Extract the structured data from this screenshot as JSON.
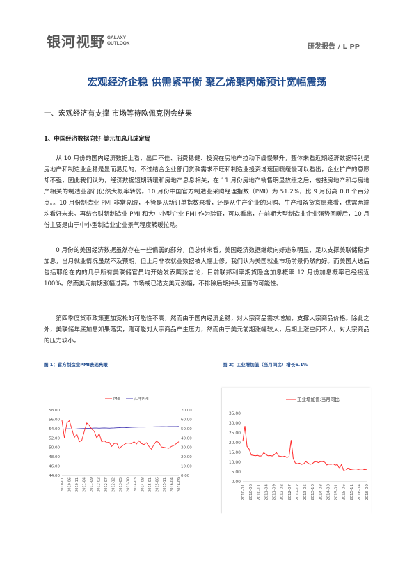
{
  "header": {
    "logo_cn": "银河视野",
    "logo_en_line1": "GALAXY",
    "logo_en_line2": "OUTLOOK",
    "report_tag": "研发报告 / L PP"
  },
  "title": "宏观经济企稳  供需紧平衡  聚乙烯聚丙烯预计宽幅震荡",
  "section_heading": "一、宏观经济有支撑    市场等待欧佩克例会结果",
  "sub_heading": "1、中国经济数据向好  美元加息几成定局",
  "paragraphs": [
    "从 10 月份的国内经济数据上看，出口不佳、消费稳健、投资在房地产拉动下缓慢攀升，整体来看近期经济数据特别是房地产和制造业企稳是显而易见的，不过结合企业部门贷款需求不旺和制造业投资增速回暖缓慢可以看出，企业扩产的意愿却不强，因此我们认为，经济数据短期转暖和房地产息息相关，在 11 月份房地产销售明显放缓之后，包括房地产和与房地产相关的制造业部门仍然大概率转弱。10 月份中国官方制造业采购经理指数（PMI）为 51.2%，比 9 月份高 0.8 个百分点。。10 月份制造业 PMI 非常亮眼，不管是从新订单指数来看，还是从生产企业的采购、生产和备货意愿来看，供需两端均看好未来。再结合财新制造业 PMI 和大中小型企业 PMI 作为验证，可以看出，在前期大型制造业企业强势回暖后，10 月份主要是由于中小型制造业企业景气程度转暖拉动。",
    "0 月份的美国经济数据虽然存在一些偏弱的部分，但总体来看，美国经济数据继续向好迹象明显，足以支撑美联储稳步加息，当月就业情况虽然不及预期，但上月非农就业数据被大幅上修，我们认为美国就业市场前景仍然向好。而美国大选后包括耶伦在内的几乎所有美联储官员均开始发表鹰派言论，目前联邦利率期货隐含加息概率 12 月份加息概率已经接近 100%。然而美元前期涨幅过高，市场或已透支美元涨幅，不排除后期掉头回落的可能性。",
    "第四季度货币政策更加宽松的可能性不高，然而由于国内经济企稳，对大宗商品需求增加，支撑大宗商品价格。除此之外，美联储年底加息如果落实，则可能对大宗商品产生压力，然而由于美元前期涨幅较大，后期上涨空间不大，对大宗商品的压力较小。"
  ],
  "figures": {
    "fig1_caption": "图 1：官方制造业PMI表现亮眼",
    "fig2_caption": "图 2：工业增加值（当月同比）增长6.1%"
  },
  "chart_data": [
    {
      "type": "line",
      "legend": [
        "PMI",
        "汇丰PMI"
      ],
      "colors": [
        "#ff2a2a",
        "#4a3fb5"
      ],
      "y_left_ticks": [
        "58.00",
        "56.00",
        "54.00",
        "52.00",
        "50.00",
        "48.00",
        "46.00",
        "44.00"
      ],
      "y_right_ticks": [
        "70.00",
        "60.00",
        "50.00",
        "40.00",
        "30.00",
        "20.00",
        "10.00",
        "0.00"
      ],
      "ylim_left": [
        44,
        58
      ],
      "ylim_right": [
        0,
        70
      ],
      "x_ticks": [
        "2010-01",
        "2010-06",
        "2010-11",
        "2011-04",
        "2011-09",
        "2012-02",
        "2012-07",
        "2012-12",
        "2013-05",
        "2013-10",
        "2014-03",
        "2014-08",
        "2015-01",
        "2015-06",
        "2015-11",
        "2016-04",
        "2016-09"
      ],
      "series": [
        {
          "name": "PMI",
          "axis": "left",
          "values": [
            55.8,
            52.0,
            55.2,
            55.7,
            53.9,
            52.1,
            52.8,
            51.2,
            51.5,
            53.4,
            55.2,
            54.7,
            53.9,
            53.4,
            52.0,
            52.9,
            51.2,
            51.4,
            51.0,
            51.1,
            50.2,
            50.8,
            50.9,
            49.8,
            50.2,
            50.6,
            50.9,
            50.9,
            50.8,
            51.2,
            50.7,
            51.4,
            50.8,
            50.6,
            51.0,
            50.2,
            49.6,
            50.6,
            51.3,
            51.0,
            50.1,
            50.0,
            49.9,
            49.8,
            50.2,
            50.4,
            50.8,
            51.2
          ]
        },
        {
          "name": "汇丰PMI",
          "axis": "right",
          "values": [
            49.5,
            49.6,
            49.7,
            49.8,
            49.6,
            49.5,
            49.7,
            49.9,
            50.0,
            50.1,
            50.2,
            50.2,
            50.4,
            50.6,
            50.6,
            50.4,
            50.6,
            50.7,
            50.6,
            50.4,
            50.6,
            50.7,
            50.9,
            51.0,
            51.2,
            51.2,
            51.0,
            51.2,
            51.3,
            51.4,
            51.5,
            51.6,
            51.7,
            51.6,
            51.7,
            51.8,
            51.7,
            51.9,
            52.0,
            52.0,
            52.1,
            52.1,
            52.0,
            52.2,
            52.2,
            52.2,
            52.2,
            52.3
          ]
        }
      ]
    },
    {
      "type": "line",
      "legend": [
        "工业增加值:当月同比"
      ],
      "colors": [
        "#ff2a2a"
      ],
      "y_ticks": [
        "35.00",
        "30.00",
        "25.00",
        "20.00",
        "15.00",
        "10.00",
        "5.00",
        "0.00"
      ],
      "ylim": [
        0,
        35
      ],
      "x_ticks": [
        "2010-01",
        "2010-06",
        "2010-11",
        "2011-04",
        "2011-09",
        "2012-02",
        "2012-07",
        "2012-12",
        "2013-05",
        "2013-10",
        "2014-03",
        "2014-08",
        "2015-01",
        "2015-06",
        "2015-11",
        "2016-04",
        "2016-09"
      ],
      "series": [
        {
          "name": "工业增加值:当月同比",
          "values": [
            20.7,
            28.5,
            18.1,
            16.7,
            13.7,
            13.5,
            13.3,
            13.5,
            13.1,
            13.3,
            14.9,
            13.9,
            13.3,
            13.4,
            13.2,
            13.8,
            14.9,
            13.2,
            13.0,
            12.8,
            13.1,
            12.4,
            12.9,
            21.3,
            11.9,
            9.6,
            9.2,
            9.5,
            8.9,
            9.2,
            10.3,
            9.6,
            8.9,
            9.2,
            10.1,
            10.3,
            9.8,
            10.3,
            10.3,
            10.0,
            8.6,
            9.0,
            8.9,
            9.2,
            8.5,
            8.8,
            6.9,
            8.9,
            5.6,
            5.9,
            6.8,
            6.3,
            6.1,
            6.0,
            5.9,
            6.2,
            6.0,
            6.0,
            6.3,
            6.1
          ]
        }
      ]
    }
  ]
}
